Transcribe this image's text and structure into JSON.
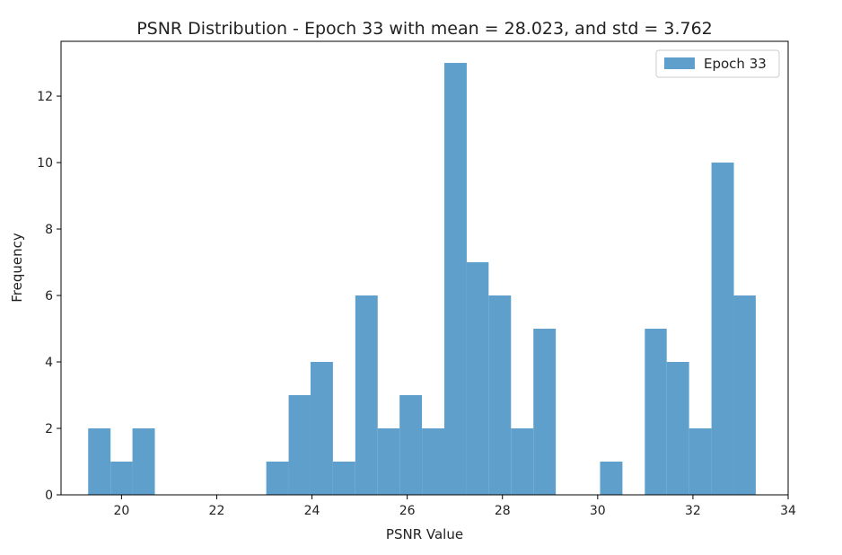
{
  "chart_data": {
    "type": "bar",
    "title": "PSNR Distribution - Epoch 33 with mean = 28.023, and std = 3.762",
    "xlabel": "PSNR Value",
    "ylabel": "Frequency",
    "xlim": [
      18.73,
      34.0
    ],
    "ylim": [
      0,
      13.65
    ],
    "xticks": [
      20,
      22,
      24,
      26,
      28,
      30,
      32,
      34
    ],
    "yticks": [
      0,
      2,
      4,
      6,
      8,
      10,
      12
    ],
    "grid": false,
    "legend": {
      "position": "top-right"
    },
    "series": [
      {
        "name": "Epoch 33",
        "color": "#5f9fcc",
        "bin_edges": [
          19.3,
          19.77,
          20.23,
          20.7,
          21.17,
          21.64,
          22.1,
          22.57,
          23.04,
          23.51,
          23.97,
          24.44,
          24.91,
          25.38,
          25.84,
          26.31,
          26.78,
          27.25,
          27.71,
          28.18,
          28.65,
          29.12,
          29.58,
          30.05,
          30.52,
          30.99,
          31.45,
          31.92,
          32.39,
          32.86,
          33.32
        ],
        "values": [
          2,
          1,
          2,
          0,
          0,
          0,
          0,
          0,
          1,
          3,
          4,
          1,
          6,
          2,
          3,
          2,
          13,
          7,
          6,
          2,
          5,
          0,
          0,
          1,
          0,
          5,
          4,
          2,
          10,
          6
        ]
      }
    ]
  }
}
